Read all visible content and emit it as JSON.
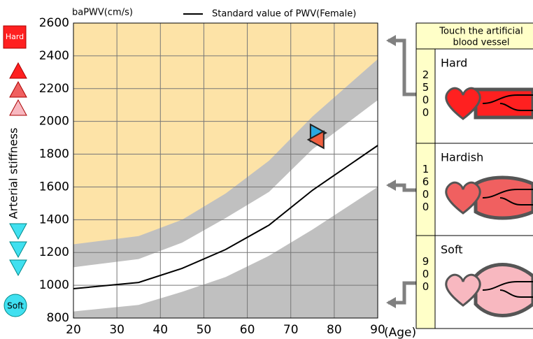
{
  "chart_data": {
    "type": "area",
    "y_label": "baPWV(cm/s)",
    "x_unit": "(Age)",
    "side_label": "Arterial stiffness",
    "hard_label": "Hard",
    "soft_label": "Soft",
    "x": [
      20,
      35,
      45,
      55,
      65,
      75,
      90
    ],
    "bands": [
      {
        "color": "#c0c0c0",
        "values": [
          1250,
          1300,
          1400,
          1560,
          1760,
          2030,
          2380
        ]
      },
      {
        "color": "#ffffff",
        "values": [
          1110,
          1160,
          1260,
          1410,
          1570,
          1830,
          2130
        ]
      },
      {
        "color": "#c0c0c0",
        "values": [
          840,
          880,
          960,
          1050,
          1180,
          1340,
          1600
        ]
      }
    ],
    "series": [
      {
        "name": "Standard value of PWV(Female)",
        "color": "#000000",
        "values": [
          979,
          1017,
          1103,
          1218,
          1367,
          1580,
          1853
        ]
      }
    ],
    "points": [
      {
        "x": 76.3,
        "y": 1930,
        "color": "#29a8e0"
      },
      {
        "x": 75.8,
        "y": 1888,
        "color": "#f06040"
      }
    ],
    "background": "#fde3a7",
    "grid": true,
    "xlim": [
      20,
      90
    ],
    "ylim": [
      800,
      2600
    ],
    "xticks": [
      20,
      30,
      40,
      50,
      60,
      70,
      80,
      90
    ],
    "yticks": [
      800,
      1000,
      1200,
      1400,
      1600,
      1800,
      2000,
      2200,
      2400,
      2600
    ]
  },
  "panel": {
    "title_lines": [
      "Touch the artificial",
      "blood vessel"
    ],
    "cards": [
      {
        "label": "Hard",
        "value": 2500,
        "color": "#ff2020"
      },
      {
        "label": "Hardish",
        "value": 1600,
        "color": "#f06060"
      },
      {
        "label": "Soft",
        "value": 900,
        "color": "#f8b8c0"
      }
    ]
  }
}
